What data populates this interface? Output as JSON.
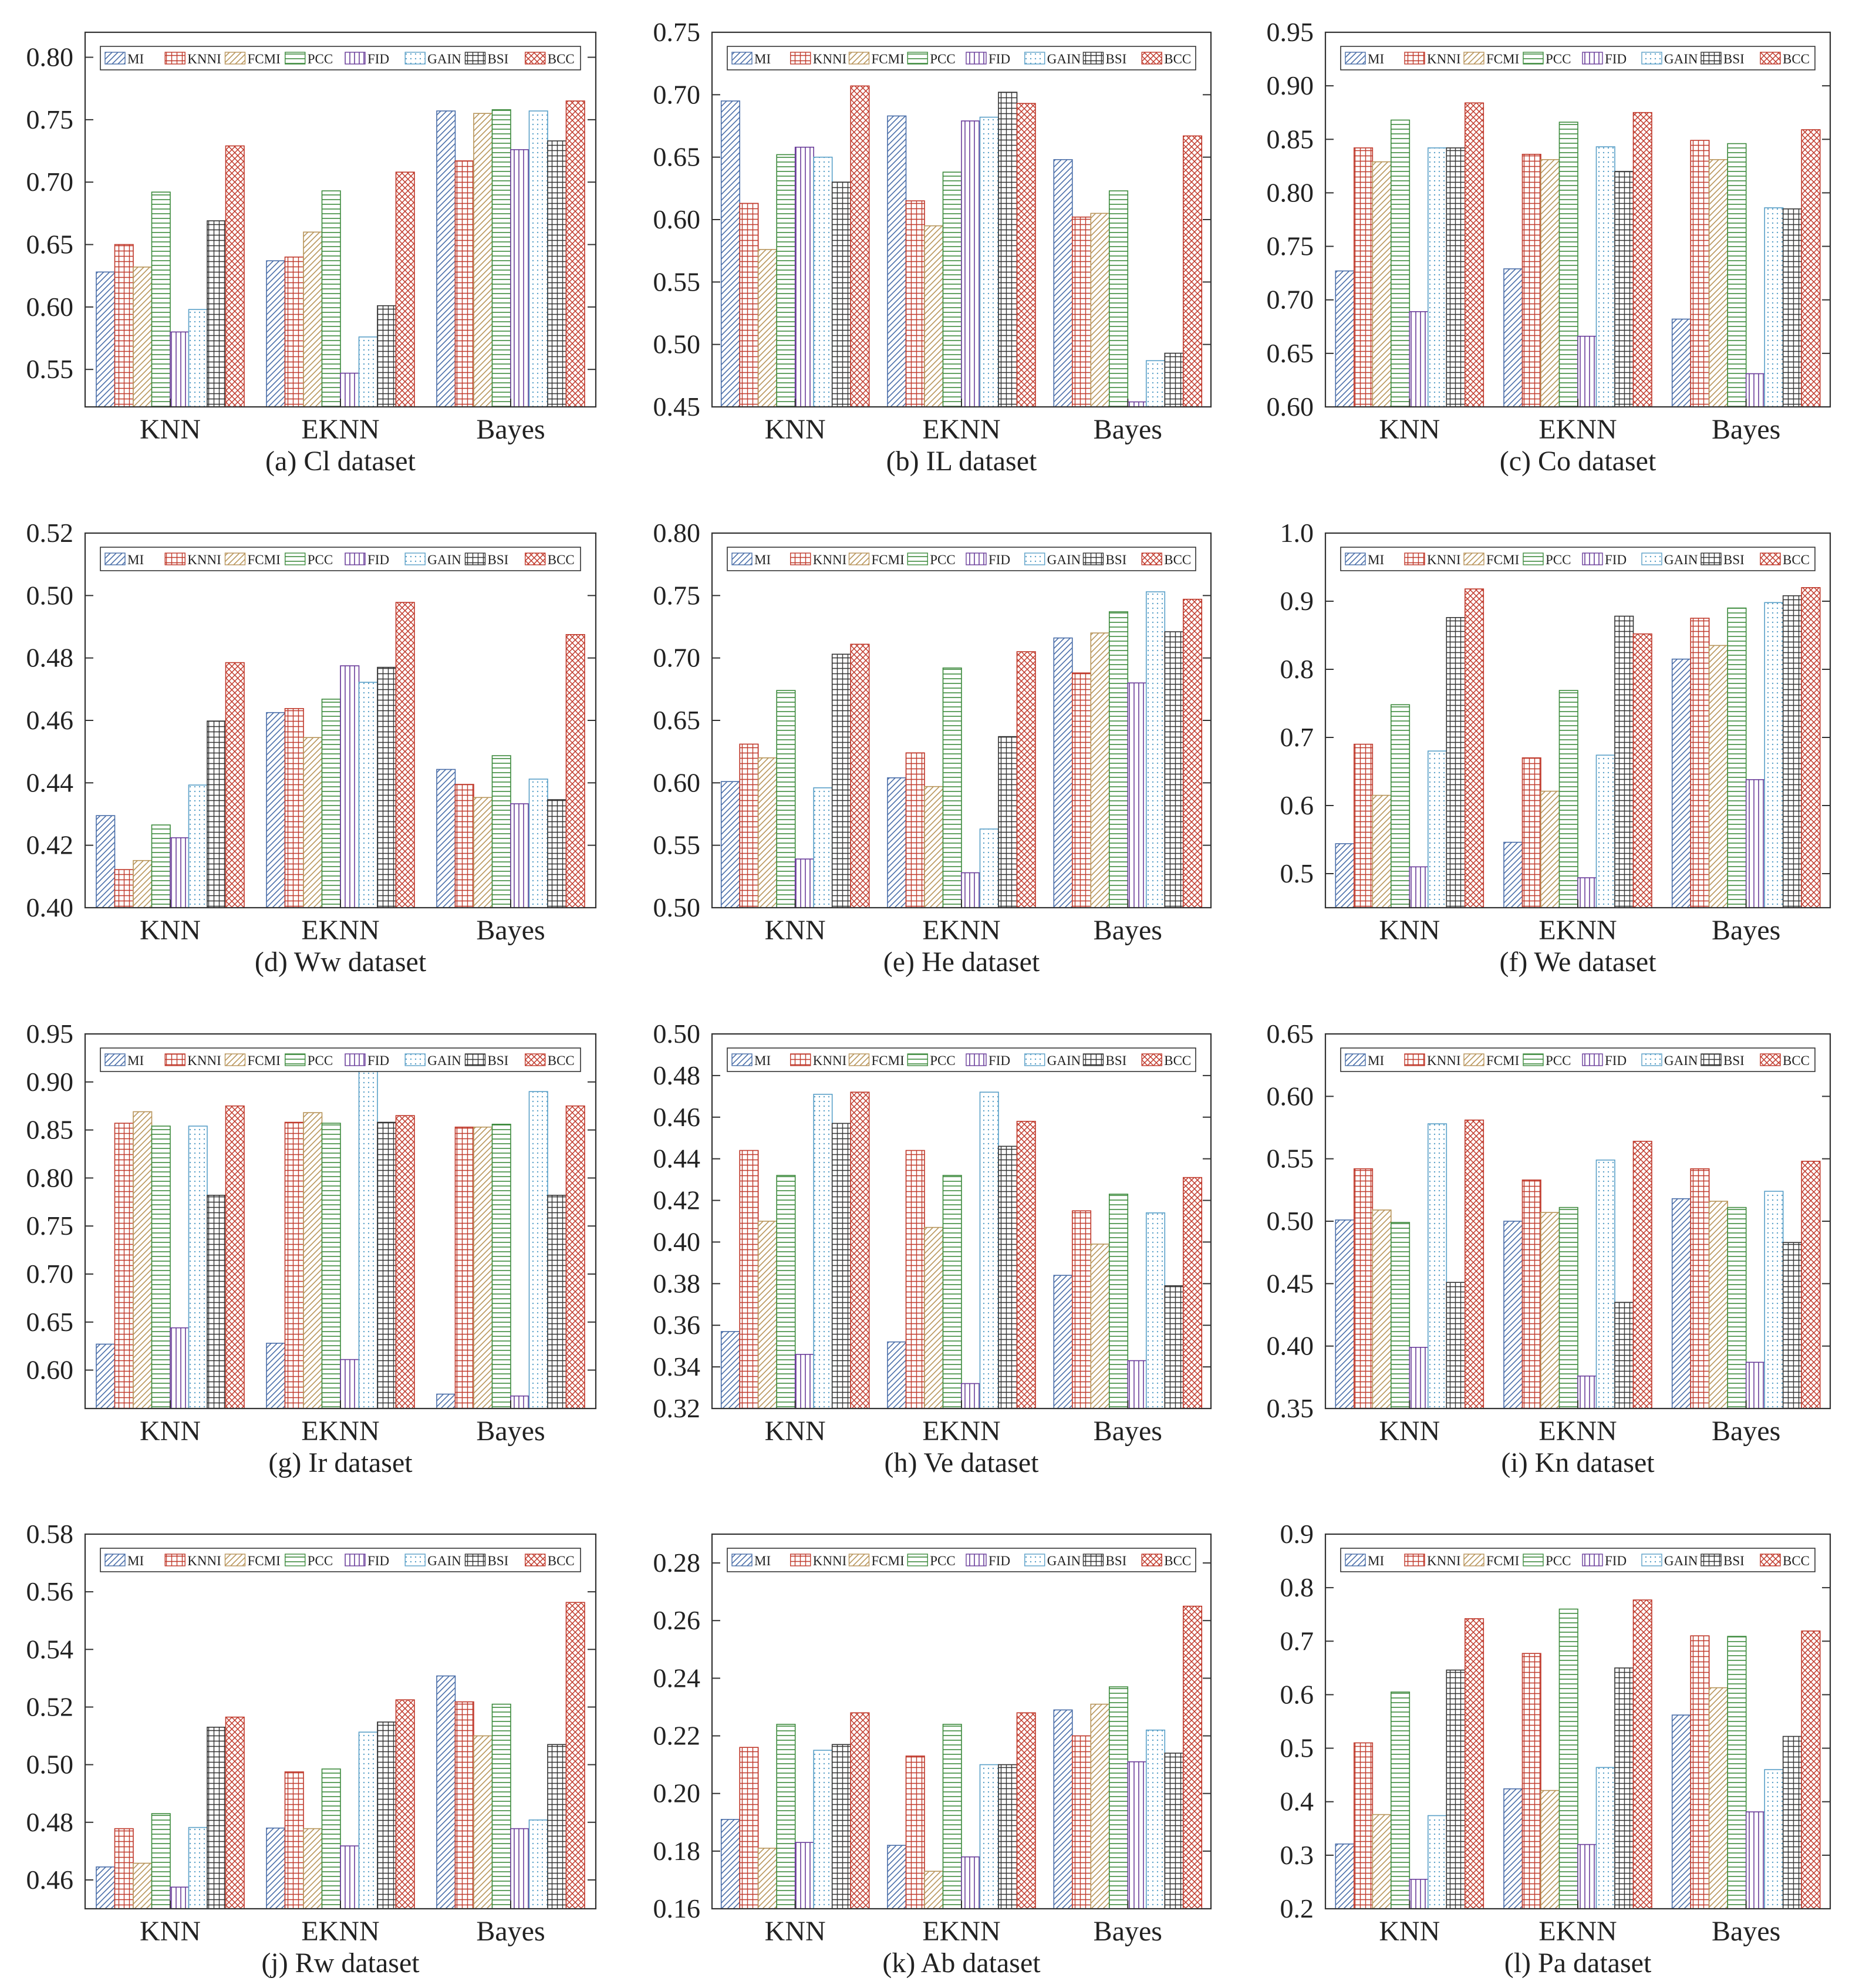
{
  "methods": [
    "MI",
    "KNNI",
    "FCMI",
    "PCC",
    "FID",
    "GAIN",
    "BSI",
    "BCC"
  ],
  "method_styles": [
    {
      "color": "#4a6ea9",
      "pattern": "diag"
    },
    {
      "color": "#c0392b",
      "pattern": "grid"
    },
    {
      "color": "#b8955a",
      "pattern": "diag"
    },
    {
      "color": "#3c8a3c",
      "pattern": "hlines"
    },
    {
      "color": "#6a3d9a",
      "pattern": "vlines"
    },
    {
      "color": "#5aa0c8",
      "pattern": "dots"
    },
    {
      "color": "#333333",
      "pattern": "grid"
    },
    {
      "color": "#c0392b",
      "pattern": "cross"
    }
  ],
  "chart_data": [
    {
      "type": "bar",
      "caption": "(a) Cl dataset",
      "categories": [
        "KNN",
        "EKNN",
        "Bayes"
      ],
      "ylim": [
        0.52,
        0.82
      ],
      "yticks": [
        "0.55",
        "0.60",
        "0.65",
        "0.70",
        "0.75",
        "0.80"
      ],
      "series": [
        {
          "name": "MI",
          "values": [
            0.628,
            0.637,
            0.757
          ]
        },
        {
          "name": "KNNI",
          "values": [
            0.65,
            0.64,
            0.717
          ]
        },
        {
          "name": "FCMI",
          "values": [
            0.632,
            0.66,
            0.755
          ]
        },
        {
          "name": "PCC",
          "values": [
            0.692,
            0.693,
            0.758
          ]
        },
        {
          "name": "FID",
          "values": [
            0.58,
            0.547,
            0.726
          ]
        },
        {
          "name": "GAIN",
          "values": [
            0.598,
            0.576,
            0.757
          ]
        },
        {
          "name": "BSI",
          "values": [
            0.669,
            0.601,
            0.733
          ]
        },
        {
          "name": "BCC",
          "values": [
            0.729,
            0.708,
            0.765
          ]
        }
      ]
    },
    {
      "type": "bar",
      "caption": "(b) IL dataset",
      "categories": [
        "KNN",
        "EKNN",
        "Bayes"
      ],
      "ylim": [
        0.45,
        0.75
      ],
      "yticks": [
        "0.45",
        "0.50",
        "0.55",
        "0.60",
        "0.65",
        "0.70",
        "0.75"
      ],
      "series": [
        {
          "name": "MI",
          "values": [
            0.695,
            0.683,
            0.648
          ]
        },
        {
          "name": "KNNI",
          "values": [
            0.613,
            0.615,
            0.602
          ]
        },
        {
          "name": "FCMI",
          "values": [
            0.576,
            0.595,
            0.605
          ]
        },
        {
          "name": "PCC",
          "values": [
            0.652,
            0.638,
            0.623
          ]
        },
        {
          "name": "FID",
          "values": [
            0.658,
            0.679,
            0.454
          ]
        },
        {
          "name": "GAIN",
          "values": [
            0.65,
            0.682,
            0.487
          ]
        },
        {
          "name": "BSI",
          "values": [
            0.63,
            0.702,
            0.493
          ]
        },
        {
          "name": "BCC",
          "values": [
            0.707,
            0.693,
            0.667
          ]
        }
      ]
    },
    {
      "type": "bar",
      "caption": "(c) Co dataset",
      "categories": [
        "KNN",
        "EKNN",
        "Bayes"
      ],
      "ylim": [
        0.6,
        0.95
      ],
      "yticks": [
        "0.60",
        "0.65",
        "0.70",
        "0.75",
        "0.80",
        "0.85",
        "0.90",
        "0.95"
      ],
      "series": [
        {
          "name": "MI",
          "values": [
            0.727,
            0.729,
            0.682
          ]
        },
        {
          "name": "KNNI",
          "values": [
            0.842,
            0.836,
            0.849
          ]
        },
        {
          "name": "FCMI",
          "values": [
            0.829,
            0.831,
            0.831
          ]
        },
        {
          "name": "PCC",
          "values": [
            0.868,
            0.866,
            0.846
          ]
        },
        {
          "name": "FID",
          "values": [
            0.689,
            0.666,
            0.631
          ]
        },
        {
          "name": "GAIN",
          "values": [
            0.842,
            0.843,
            0.786
          ]
        },
        {
          "name": "BSI",
          "values": [
            0.842,
            0.82,
            0.785
          ]
        },
        {
          "name": "BCC",
          "values": [
            0.884,
            0.875,
            0.859
          ]
        }
      ]
    },
    {
      "type": "bar",
      "caption": "(d) Ww dataset",
      "categories": [
        "KNN",
        "EKNN",
        "Bayes"
      ],
      "ylim": [
        0.4,
        0.52
      ],
      "yticks": [
        "0.40",
        "0.42",
        "0.44",
        "0.46",
        "0.48",
        "0.50",
        "0.52"
      ],
      "series": [
        {
          "name": "MI",
          "values": [
            0.4295,
            0.4625,
            0.4443
          ]
        },
        {
          "name": "KNNI",
          "values": [
            0.4122,
            0.4638,
            0.4395
          ]
        },
        {
          "name": "FCMI",
          "values": [
            0.4151,
            0.4545,
            0.4353
          ]
        },
        {
          "name": "PCC",
          "values": [
            0.4265,
            0.4668,
            0.4487
          ]
        },
        {
          "name": "FID",
          "values": [
            0.4224,
            0.4775,
            0.4333
          ]
        },
        {
          "name": "GAIN",
          "values": [
            0.4393,
            0.4722,
            0.4412
          ]
        },
        {
          "name": "BSI",
          "values": [
            0.4598,
            0.477,
            0.4346
          ]
        },
        {
          "name": "BCC",
          "values": [
            0.4785,
            0.4978,
            0.4875
          ]
        }
      ]
    },
    {
      "type": "bar",
      "caption": "(e) He dataset",
      "categories": [
        "KNN",
        "EKNN",
        "Bayes"
      ],
      "ylim": [
        0.5,
        0.8
      ],
      "yticks": [
        "0.50",
        "0.55",
        "0.60",
        "0.65",
        "0.70",
        "0.75",
        "0.80"
      ],
      "series": [
        {
          "name": "MI",
          "values": [
            0.601,
            0.604,
            0.716
          ]
        },
        {
          "name": "KNNI",
          "values": [
            0.631,
            0.624,
            0.688
          ]
        },
        {
          "name": "FCMI",
          "values": [
            0.62,
            0.597,
            0.72
          ]
        },
        {
          "name": "PCC",
          "values": [
            0.674,
            0.692,
            0.737
          ]
        },
        {
          "name": "FID",
          "values": [
            0.539,
            0.528,
            0.68
          ]
        },
        {
          "name": "GAIN",
          "values": [
            0.596,
            0.563,
            0.753
          ]
        },
        {
          "name": "BSI",
          "values": [
            0.703,
            0.637,
            0.721
          ]
        },
        {
          "name": "BCC",
          "values": [
            0.711,
            0.705,
            0.747
          ]
        }
      ]
    },
    {
      "type": "bar",
      "caption": "(f) We dataset",
      "categories": [
        "KNN",
        "EKNN",
        "Bayes"
      ],
      "ylim": [
        0.45,
        1.0
      ],
      "yticks": [
        "0.5",
        "0.6",
        "0.7",
        "0.8",
        "0.9",
        "1.0"
      ],
      "series": [
        {
          "name": "MI",
          "values": [
            0.544,
            0.546,
            0.815
          ]
        },
        {
          "name": "KNNI",
          "values": [
            0.69,
            0.67,
            0.875
          ]
        },
        {
          "name": "FCMI",
          "values": [
            0.615,
            0.621,
            0.835
          ]
        },
        {
          "name": "PCC",
          "values": [
            0.748,
            0.769,
            0.89
          ]
        },
        {
          "name": "FID",
          "values": [
            0.51,
            0.494,
            0.638
          ]
        },
        {
          "name": "GAIN",
          "values": [
            0.68,
            0.674,
            0.898
          ]
        },
        {
          "name": "BSI",
          "values": [
            0.876,
            0.878,
            0.908
          ]
        },
        {
          "name": "BCC",
          "values": [
            0.918,
            0.852,
            0.92
          ]
        }
      ]
    },
    {
      "type": "bar",
      "caption": "(g) Ir dataset",
      "categories": [
        "KNN",
        "EKNN",
        "Bayes"
      ],
      "ylim": [
        0.56,
        0.95
      ],
      "yticks": [
        "0.60",
        "0.65",
        "0.70",
        "0.75",
        "0.80",
        "0.85",
        "0.90",
        "0.95"
      ],
      "series": [
        {
          "name": "MI",
          "values": [
            0.627,
            0.628,
            0.575
          ]
        },
        {
          "name": "KNNI",
          "values": [
            0.857,
            0.858,
            0.853
          ]
        },
        {
          "name": "FCMI",
          "values": [
            0.869,
            0.868,
            0.853
          ]
        },
        {
          "name": "PCC",
          "values": [
            0.854,
            0.857,
            0.856
          ]
        },
        {
          "name": "FID",
          "values": [
            0.644,
            0.611,
            0.573
          ]
        },
        {
          "name": "GAIN",
          "values": [
            0.854,
            0.919,
            0.89
          ]
        },
        {
          "name": "BSI",
          "values": [
            0.782,
            0.858,
            0.782
          ]
        },
        {
          "name": "BCC",
          "values": [
            0.875,
            0.865,
            0.875
          ]
        }
      ]
    },
    {
      "type": "bar",
      "caption": "(h) Ve dataset",
      "categories": [
        "KNN",
        "EKNN",
        "Bayes"
      ],
      "ylim": [
        0.32,
        0.5
      ],
      "yticks": [
        "0.32",
        "0.34",
        "0.36",
        "0.38",
        "0.40",
        "0.42",
        "0.44",
        "0.46",
        "0.48",
        "0.50"
      ],
      "series": [
        {
          "name": "MI",
          "values": [
            0.357,
            0.352,
            0.384
          ]
        },
        {
          "name": "KNNI",
          "values": [
            0.444,
            0.444,
            0.415
          ]
        },
        {
          "name": "FCMI",
          "values": [
            0.41,
            0.407,
            0.399
          ]
        },
        {
          "name": "PCC",
          "values": [
            0.432,
            0.432,
            0.423
          ]
        },
        {
          "name": "FID",
          "values": [
            0.346,
            0.332,
            0.343
          ]
        },
        {
          "name": "GAIN",
          "values": [
            0.471,
            0.472,
            0.414
          ]
        },
        {
          "name": "BSI",
          "values": [
            0.457,
            0.446,
            0.379
          ]
        },
        {
          "name": "BCC",
          "values": [
            0.472,
            0.458,
            0.431
          ]
        }
      ]
    },
    {
      "type": "bar",
      "caption": "(i) Kn dataset",
      "categories": [
        "KNN",
        "EKNN",
        "Bayes"
      ],
      "ylim": [
        0.35,
        0.65
      ],
      "yticks": [
        "0.35",
        "0.40",
        "0.45",
        "0.50",
        "0.55",
        "0.60",
        "0.65"
      ],
      "series": [
        {
          "name": "MI",
          "values": [
            0.501,
            0.5,
            0.518
          ]
        },
        {
          "name": "KNNI",
          "values": [
            0.542,
            0.533,
            0.542
          ]
        },
        {
          "name": "FCMI",
          "values": [
            0.509,
            0.507,
            0.516
          ]
        },
        {
          "name": "PCC",
          "values": [
            0.499,
            0.511,
            0.511
          ]
        },
        {
          "name": "FID",
          "values": [
            0.399,
            0.376,
            0.387
          ]
        },
        {
          "name": "GAIN",
          "values": [
            0.578,
            0.549,
            0.524
          ]
        },
        {
          "name": "BSI",
          "values": [
            0.451,
            0.435,
            0.483
          ]
        },
        {
          "name": "BCC",
          "values": [
            0.581,
            0.564,
            0.548
          ]
        }
      ]
    },
    {
      "type": "bar",
      "caption": "(j) Rw dataset",
      "categories": [
        "KNN",
        "EKNN",
        "Bayes"
      ],
      "ylim": [
        0.45,
        0.58
      ],
      "yticks": [
        "0.46",
        "0.48",
        "0.50",
        "0.52",
        "0.54",
        "0.56",
        "0.58"
      ],
      "series": [
        {
          "name": "MI",
          "values": [
            0.4645,
            0.478,
            0.5308
          ]
        },
        {
          "name": "KNNI",
          "values": [
            0.4778,
            0.4975,
            0.5218
          ]
        },
        {
          "name": "FCMI",
          "values": [
            0.4658,
            0.4778,
            0.51
          ]
        },
        {
          "name": "PCC",
          "values": [
            0.483,
            0.4985,
            0.521
          ]
        },
        {
          "name": "FID",
          "values": [
            0.4575,
            0.4718,
            0.4778
          ]
        },
        {
          "name": "GAIN",
          "values": [
            0.4782,
            0.5113,
            0.4808
          ]
        },
        {
          "name": "BSI",
          "values": [
            0.513,
            0.5148,
            0.507
          ]
        },
        {
          "name": "BCC",
          "values": [
            0.5165,
            0.5225,
            0.5563
          ]
        }
      ]
    },
    {
      "type": "bar",
      "caption": "(k) Ab dataset",
      "categories": [
        "KNN",
        "EKNN",
        "Bayes"
      ],
      "ylim": [
        0.16,
        0.29
      ],
      "yticks": [
        "0.16",
        "0.18",
        "0.20",
        "0.22",
        "0.24",
        "0.26",
        "0.28"
      ],
      "series": [
        {
          "name": "MI",
          "values": [
            0.191,
            0.182,
            0.229
          ]
        },
        {
          "name": "KNNI",
          "values": [
            0.216,
            0.213,
            0.22
          ]
        },
        {
          "name": "FCMI",
          "values": [
            0.181,
            0.173,
            0.231
          ]
        },
        {
          "name": "PCC",
          "values": [
            0.224,
            0.224,
            0.237
          ]
        },
        {
          "name": "FID",
          "values": [
            0.183,
            0.178,
            0.211
          ]
        },
        {
          "name": "GAIN",
          "values": [
            0.215,
            0.21,
            0.222
          ]
        },
        {
          "name": "BSI",
          "values": [
            0.217,
            0.21,
            0.214
          ]
        },
        {
          "name": "BCC",
          "values": [
            0.228,
            0.228,
            0.265
          ]
        }
      ]
    },
    {
      "type": "bar",
      "caption": "(l) Pa dataset",
      "categories": [
        "KNN",
        "EKNN",
        "Bayes"
      ],
      "ylim": [
        0.2,
        0.9
      ],
      "yticks": [
        "0.2",
        "0.3",
        "0.4",
        "0.5",
        "0.6",
        "0.7",
        "0.8",
        "0.9"
      ],
      "series": [
        {
          "name": "MI",
          "values": [
            0.321,
            0.424,
            0.562
          ]
        },
        {
          "name": "KNNI",
          "values": [
            0.51,
            0.677,
            0.71
          ]
        },
        {
          "name": "FCMI",
          "values": [
            0.376,
            0.421,
            0.613
          ]
        },
        {
          "name": "PCC",
          "values": [
            0.605,
            0.76,
            0.709
          ]
        },
        {
          "name": "FID",
          "values": [
            0.255,
            0.32,
            0.381
          ]
        },
        {
          "name": "GAIN",
          "values": [
            0.374,
            0.464,
            0.46
          ]
        },
        {
          "name": "BSI",
          "values": [
            0.646,
            0.65,
            0.522
          ]
        },
        {
          "name": "BCC",
          "values": [
            0.742,
            0.777,
            0.719
          ]
        }
      ]
    }
  ]
}
